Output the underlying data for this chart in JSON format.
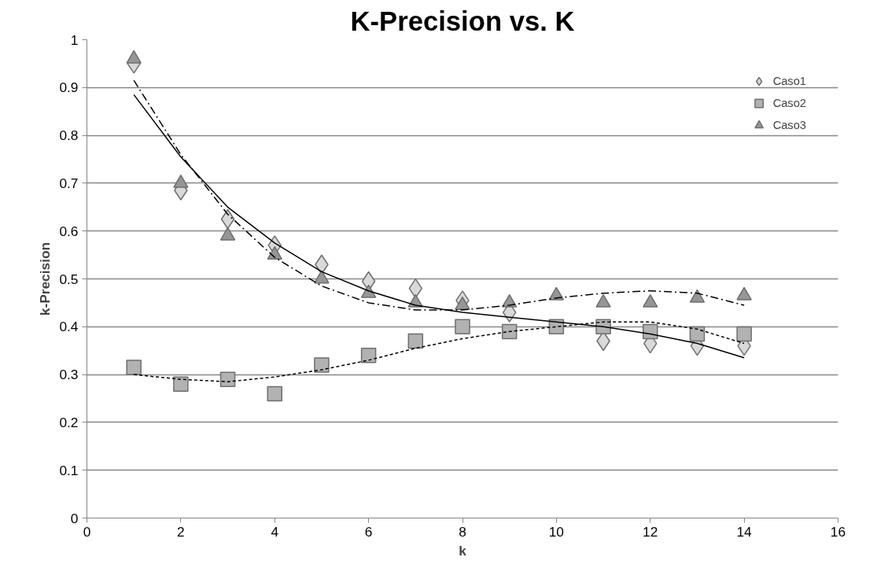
{
  "chart_data": {
    "type": "scatter",
    "title": "K-Precision vs. K",
    "xlabel": "k",
    "ylabel": "k-Precision",
    "x": [
      1,
      2,
      3,
      4,
      5,
      6,
      7,
      8,
      9,
      10,
      11,
      12,
      13,
      14
    ],
    "series": [
      {
        "name": "Caso1",
        "color": "#d9d9d9",
        "marker": "diamond",
        "values": [
          0.95,
          0.685,
          0.625,
          0.57,
          0.53,
          0.495,
          0.48,
          0.455,
          0.43,
          null,
          0.37,
          0.365,
          0.36,
          0.36
        ]
      },
      {
        "name": "Caso2",
        "color": "#b2b2b2",
        "marker": "square",
        "values": [
          0.315,
          0.28,
          0.29,
          0.26,
          0.32,
          0.34,
          0.37,
          0.4,
          0.39,
          0.4,
          0.4,
          0.39,
          0.385,
          0.385
        ]
      },
      {
        "name": "Caso3",
        "color": "#969696",
        "marker": "triangle",
        "values": [
          0.96,
          0.7,
          0.59,
          0.55,
          0.5,
          0.47,
          0.45,
          0.445,
          0.45,
          0.465,
          0.45,
          0.45,
          0.46,
          0.465
        ]
      },
      {
        "type": "line",
        "color": "#000000",
        "line_style": "solid",
        "x": [
          1,
          2,
          3,
          4,
          5,
          6,
          7,
          8,
          9,
          10,
          11,
          12,
          13,
          14
        ],
        "values": [
          0.885,
          0.755,
          0.65,
          0.575,
          0.515,
          0.475,
          0.445,
          0.43,
          0.42,
          0.41,
          0.4,
          0.385,
          0.365,
          0.335
        ]
      },
      {
        "type": "line",
        "color": "#000000",
        "line_style": "dashed",
        "x": [
          1,
          2,
          3,
          4,
          5,
          6,
          7,
          8,
          9,
          10,
          11,
          12,
          13,
          14
        ],
        "values": [
          0.3,
          0.29,
          0.285,
          0.295,
          0.31,
          0.33,
          0.355,
          0.375,
          0.39,
          0.4,
          0.41,
          0.41,
          0.395,
          0.365
        ]
      },
      {
        "type": "line",
        "color": "#000000",
        "line_style": "dashdot",
        "x": [
          1,
          2,
          3,
          4,
          5,
          6,
          7,
          8,
          9,
          10,
          11,
          12,
          13,
          14
        ],
        "values": [
          0.915,
          0.76,
          0.635,
          0.545,
          0.485,
          0.45,
          0.435,
          0.435,
          0.445,
          0.46,
          0.47,
          0.475,
          0.47,
          0.445
        ]
      }
    ],
    "xlim": [
      0,
      16
    ],
    "xticks": [
      0,
      2,
      4,
      6,
      8,
      10,
      12,
      14,
      16
    ],
    "ylim": [
      0,
      1
    ],
    "yticks": [
      0,
      0.1,
      0.2,
      0.3,
      0.4,
      0.5,
      0.6,
      0.7,
      0.8,
      0.9,
      1
    ],
    "grid": "y",
    "legend": "top right"
  }
}
